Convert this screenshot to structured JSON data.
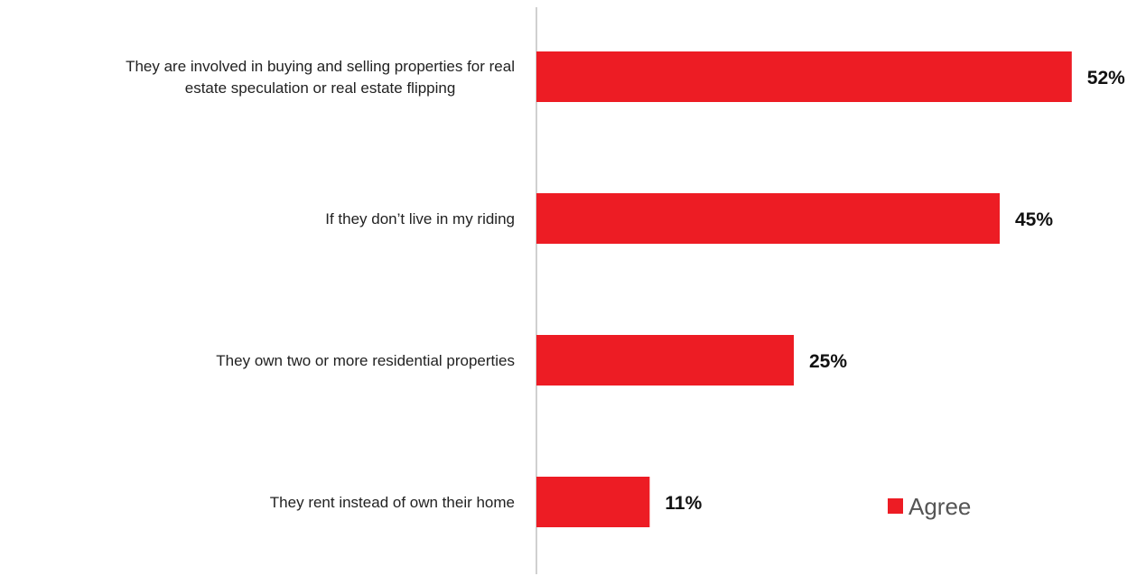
{
  "chart_data": {
    "type": "bar",
    "orientation": "horizontal",
    "categories": [
      "They are involved in buying and selling properties for real estate speculation or real estate flipping",
      "If they don’t live in my riding",
      "They own two or more residential properties",
      "They rent instead of own their home"
    ],
    "category_lines": [
      [
        "They are involved in buying and selling properties for real",
        "estate speculation or real estate flipping"
      ],
      [
        "If they don’t live in my riding"
      ],
      [
        "They own two or more residential properties"
      ],
      [
        "They rent instead of own their home"
      ]
    ],
    "series": [
      {
        "name": "Agree",
        "values": [
          52,
          45,
          25,
          11
        ],
        "color": "#ed1c24"
      }
    ],
    "value_labels": [
      "52%",
      "45%",
      "25%",
      "11%"
    ],
    "xlim": [
      0,
      100
    ],
    "grid": false,
    "legend": {
      "position": "bottom-right",
      "label": "Agree"
    },
    "title": "",
    "xlabel": "",
    "ylabel": ""
  }
}
